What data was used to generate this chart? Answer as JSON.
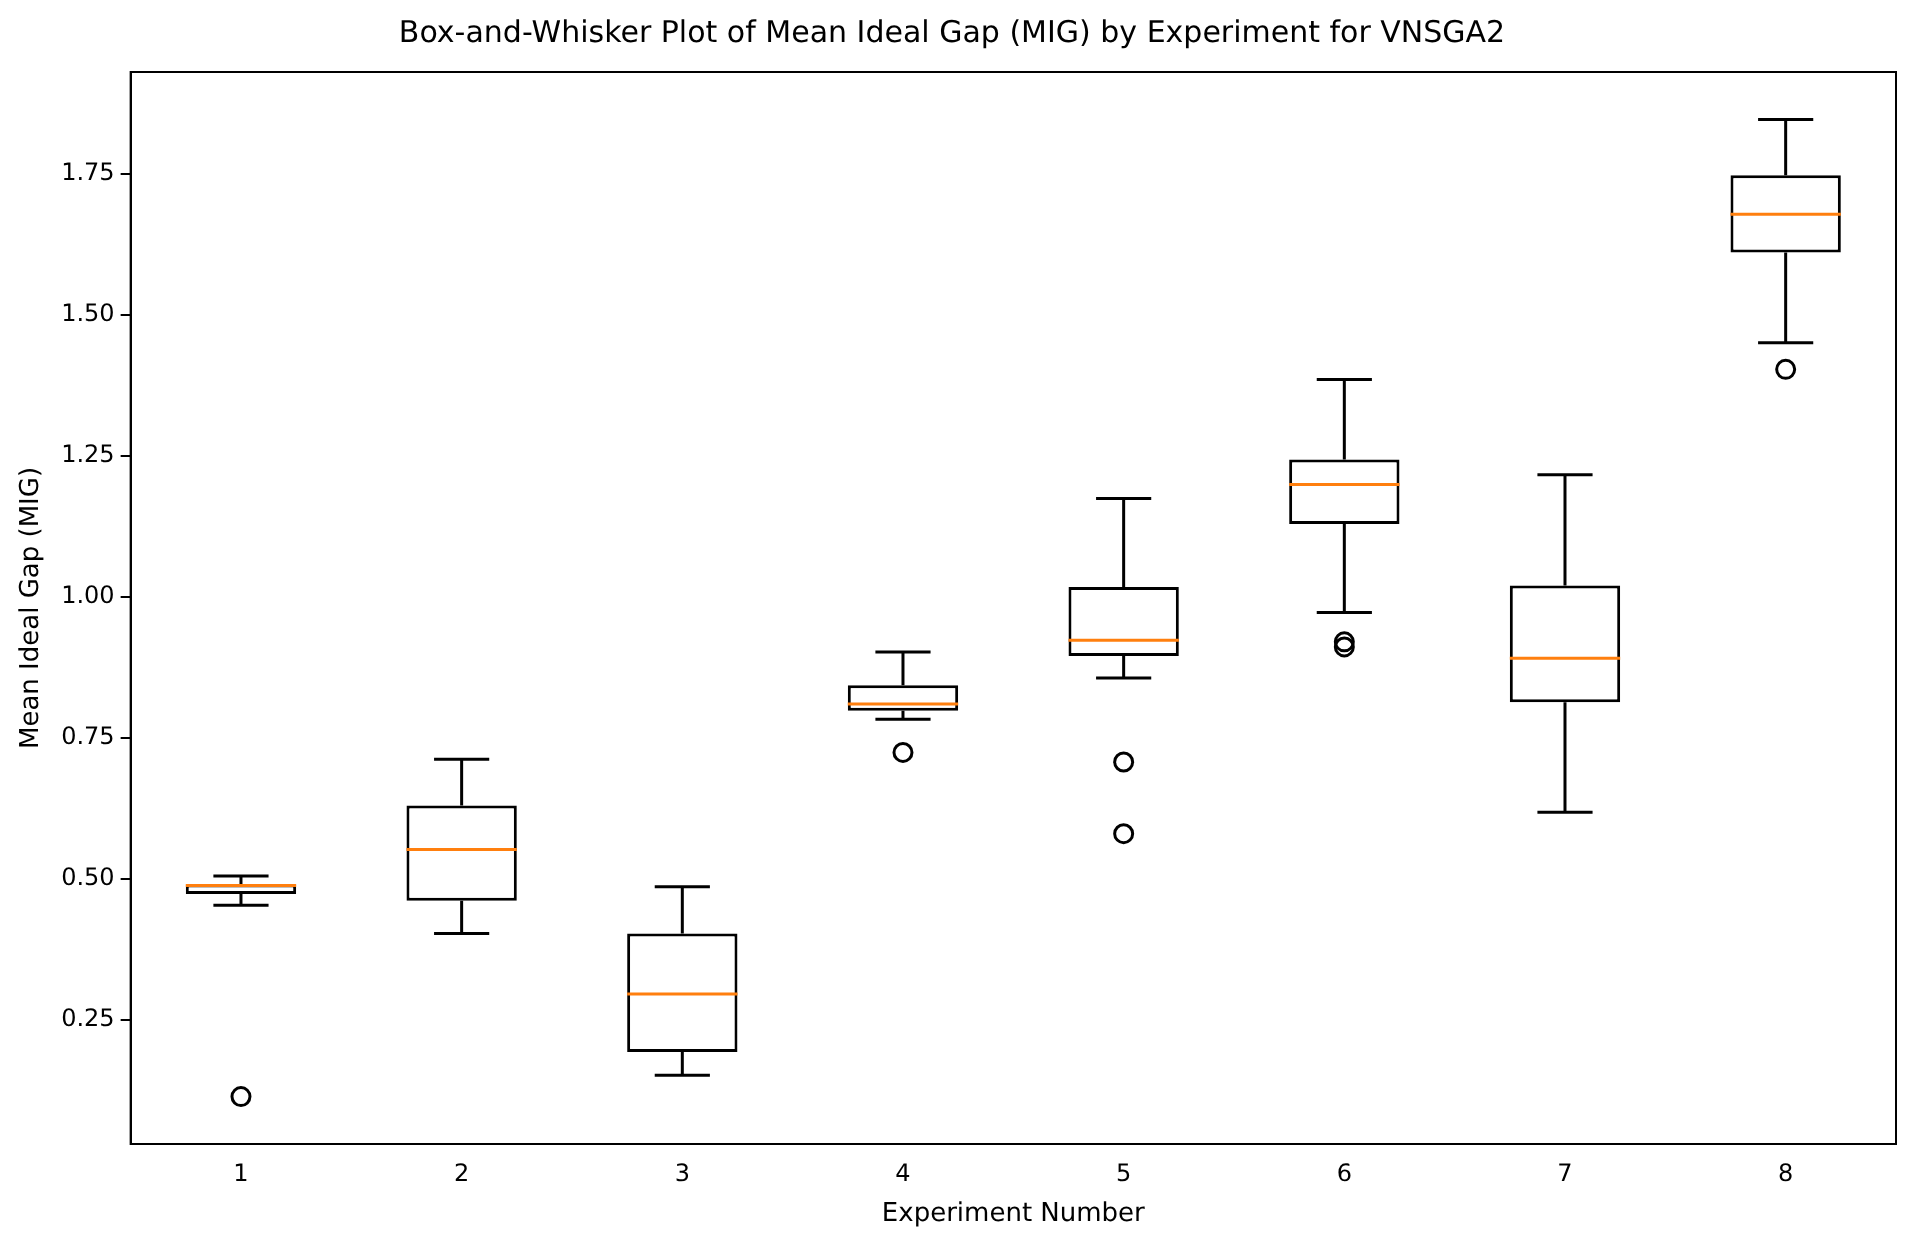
{
  "chart_data": {
    "type": "box",
    "title": "Box-and-Whisker Plot of Mean Ideal Gap (MIG) by Experiment for VNSGA2",
    "xlabel": "Experiment Number",
    "ylabel": "Mean Ideal Gap (MIG)",
    "categories": [
      "1",
      "2",
      "3",
      "4",
      "5",
      "6",
      "7",
      "8"
    ],
    "boxes": [
      {
        "low": 0.453,
        "q1": 0.473,
        "median": 0.488,
        "q3": 0.49,
        "high": 0.505,
        "outliers": [
          0.114
        ]
      },
      {
        "low": 0.403,
        "q1": 0.461,
        "median": 0.552,
        "q3": 0.63,
        "high": 0.712
      },
      {
        "low": 0.152,
        "q1": 0.193,
        "median": 0.296,
        "q3": 0.403,
        "high": 0.486
      },
      {
        "low": 0.783,
        "q1": 0.798,
        "median": 0.81,
        "q3": 0.843,
        "high": 0.902,
        "outliers": [
          0.724
        ]
      },
      {
        "low": 0.856,
        "q1": 0.895,
        "median": 0.923,
        "q3": 1.017,
        "high": 1.174,
        "outliers": [
          0.707,
          0.58
        ]
      },
      {
        "low": 0.972,
        "q1": 1.129,
        "median": 1.199,
        "q3": 1.243,
        "high": 1.385,
        "outliers": [
          0.92,
          0.911
        ]
      },
      {
        "low": 0.618,
        "q1": 0.813,
        "median": 0.891,
        "q3": 1.02,
        "high": 1.216
      },
      {
        "low": 1.45,
        "q1": 1.61,
        "median": 1.678,
        "q3": 1.747,
        "high": 1.846,
        "outliers": [
          1.403
        ]
      }
    ],
    "ylim": [
      0.03,
      1.93
    ],
    "yticks": [
      {
        "value": 0.25,
        "label": "0.25"
      },
      {
        "value": 0.5,
        "label": "0.50"
      },
      {
        "value": 0.75,
        "label": "0.75"
      },
      {
        "value": 1,
        "label": "1.00"
      },
      {
        "value": 1.25,
        "label": "1.25"
      },
      {
        "value": 1.5,
        "label": "1.50"
      },
      {
        "value": 1.75,
        "label": "1.75"
      }
    ],
    "grid": false,
    "legend": false
  }
}
